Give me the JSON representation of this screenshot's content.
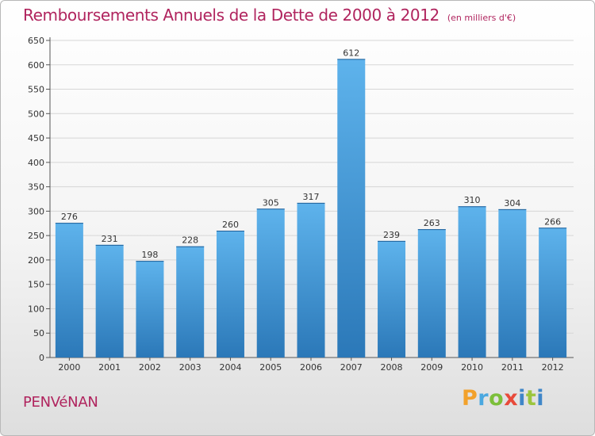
{
  "header": {
    "title": "Remboursements Annuels de la Dette de 2000 à 2012",
    "unit": "(en milliers d'€)"
  },
  "footer": {
    "commune": "PENVéNAN",
    "brand_letters": [
      "P",
      "r",
      "o",
      "x",
      "i",
      "t",
      "i"
    ]
  },
  "colors": {
    "bar_top": "#5eb3ec",
    "bar_bottom": "#2b78b8",
    "title": "#b0245e",
    "grid": "#d6d6d6"
  },
  "chart_data": {
    "type": "bar",
    "categories": [
      "2000",
      "2001",
      "2002",
      "2003",
      "2004",
      "2005",
      "2006",
      "2007",
      "2008",
      "2009",
      "2010",
      "2011",
      "2012"
    ],
    "values": [
      276,
      231,
      198,
      228,
      260,
      305,
      317,
      612,
      239,
      263,
      310,
      304,
      266
    ],
    "ylim": [
      0,
      650
    ],
    "yticks": [
      0,
      50,
      100,
      150,
      200,
      250,
      300,
      350,
      400,
      450,
      500,
      550,
      600,
      650
    ],
    "grid": true,
    "title": "Remboursements Annuels de la Dette de 2000 à 2012",
    "xlabel": "",
    "ylabel": ""
  }
}
